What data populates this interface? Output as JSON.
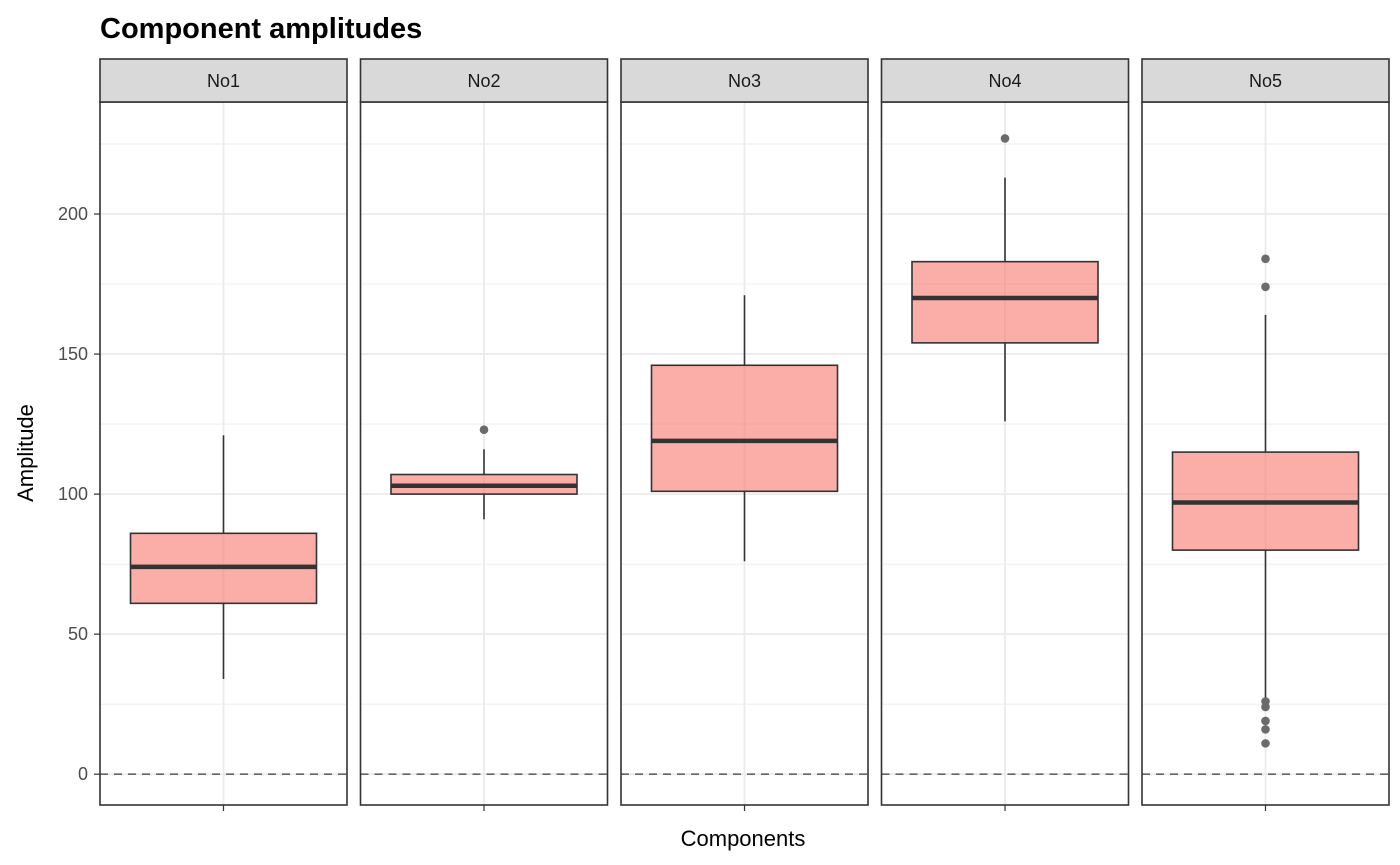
{
  "chart_data": {
    "type": "box",
    "title": "Component amplitudes",
    "xlabel": "Components",
    "ylabel": "Amplitude",
    "ylim": [
      -11,
      240
    ],
    "yticks": [
      0,
      50,
      100,
      150,
      200
    ],
    "grid": true,
    "reference_line": {
      "y": 0,
      "style": "dashed",
      "color": "#666666"
    },
    "colors": {
      "box_fill": "#F8766D",
      "box_fill_opacity": 0.6,
      "box_stroke": "#333333",
      "outlier": "#6b6b6b",
      "strip_bg": "#d9d9d9",
      "panel_border": "#333333",
      "grid": "#ebebeb"
    },
    "facets": [
      {
        "label": "No1",
        "whisker_low": 34,
        "q1": 61,
        "median": 74,
        "q3": 86,
        "whisker_high": 121,
        "outliers": []
      },
      {
        "label": "No2",
        "whisker_low": 91,
        "q1": 100,
        "median": 103,
        "q3": 107,
        "whisker_high": 116,
        "outliers": [
          123
        ]
      },
      {
        "label": "No3",
        "whisker_low": 76,
        "q1": 101,
        "median": 119,
        "q3": 146,
        "whisker_high": 171,
        "outliers": []
      },
      {
        "label": "No4",
        "whisker_low": 126,
        "q1": 154,
        "median": 170,
        "q3": 183,
        "whisker_high": 213,
        "outliers": [
          227
        ]
      },
      {
        "label": "No5",
        "whisker_low": 27,
        "q1": 80,
        "median": 97,
        "q3": 115,
        "whisker_high": 164,
        "outliers": [
          184,
          174,
          26,
          24,
          19,
          16,
          11
        ]
      }
    ]
  }
}
